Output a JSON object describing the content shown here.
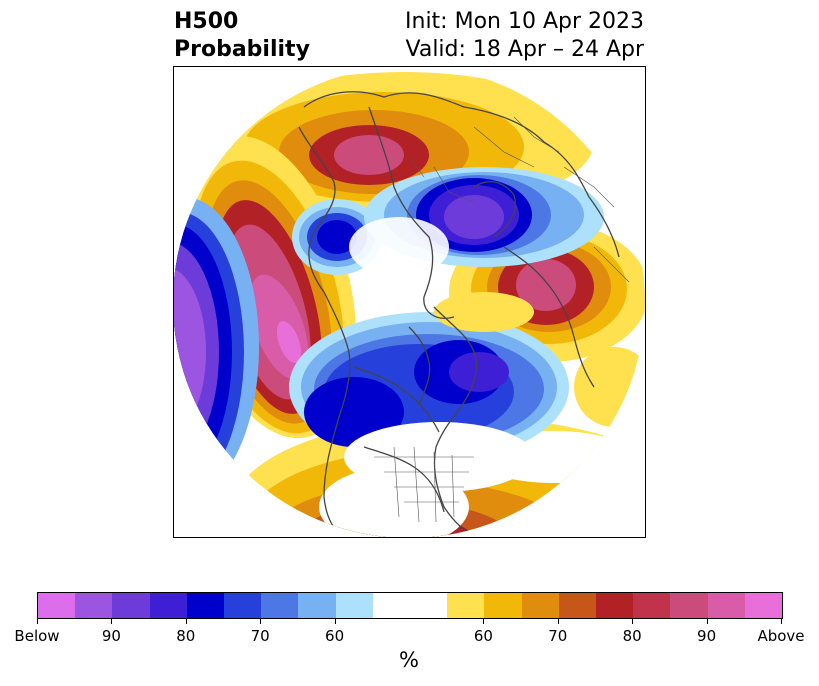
{
  "title": {
    "left_line1": "H500",
    "left_line2": "Probability",
    "right_line1": "Init: Mon 10 Apr 2023",
    "right_line2": "Valid: 18 Apr – 24 Apr"
  },
  "colorbar": {
    "unit": "%",
    "colors": [
      "#dc6eeb",
      "#9c55e0",
      "#6d3bd9",
      "#3f1fd6",
      "#0000cd",
      "#2640dc",
      "#4e77e6",
      "#78b1f2",
      "#ade0fb",
      "#ffffff",
      "#ffffff",
      "#ffe04e",
      "#f2b809",
      "#e08c0c",
      "#c7561a",
      "#b22125",
      "#c0334a",
      "#cb4b7b",
      "#d95ca8",
      "#e86fd9"
    ],
    "tick_labels": [
      "Below",
      "90",
      "80",
      "70",
      "60",
      "60",
      "70",
      "80",
      "90",
      "Above"
    ]
  },
  "map": {
    "projection": "north polar stereographic",
    "coastline_color": "#444444"
  }
}
